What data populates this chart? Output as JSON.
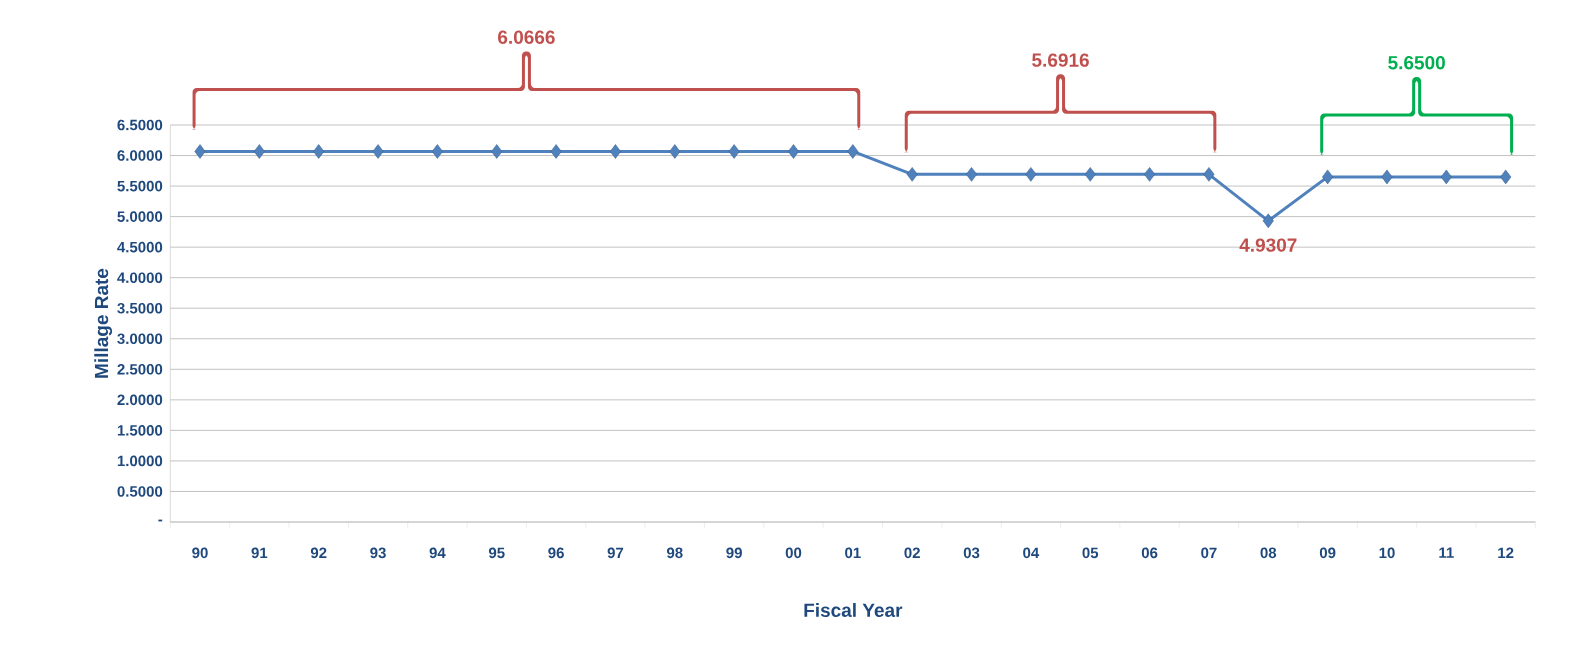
{
  "chart_data": {
    "type": "line",
    "xlabel": "Fiscal Year",
    "ylabel": "Millage Rate",
    "categories": [
      "90",
      "91",
      "92",
      "93",
      "94",
      "95",
      "96",
      "97",
      "98",
      "99",
      "00",
      "01",
      "02",
      "03",
      "04",
      "05",
      "06",
      "07",
      "08",
      "09",
      "10",
      "11",
      "12"
    ],
    "series": [
      {
        "color": "#4f81bd",
        "values": [
          6.0666,
          6.0666,
          6.0666,
          6.0666,
          6.0666,
          6.0666,
          6.0666,
          6.0666,
          6.0666,
          6.0666,
          6.0666,
          6.0666,
          5.6916,
          5.6916,
          5.6916,
          5.6916,
          5.6916,
          5.6916,
          4.9307,
          5.65,
          5.65,
          5.65,
          5.65
        ]
      }
    ],
    "ylim": [
      0,
      6.5
    ],
    "yticks": [
      {
        "value": 0,
        "label": "-"
      },
      {
        "value": 0.5,
        "label": "0.5000"
      },
      {
        "value": 1,
        "label": "1.0000"
      },
      {
        "value": 1.5,
        "label": "1.5000"
      },
      {
        "value": 2,
        "label": "2.0000"
      },
      {
        "value": 2.5,
        "label": "2.5000"
      },
      {
        "value": 3,
        "label": "3.0000"
      },
      {
        "value": 3.5,
        "label": "3.5000"
      },
      {
        "value": 4,
        "label": "4.0000"
      },
      {
        "value": 4.5,
        "label": "4.5000"
      },
      {
        "value": 5,
        "label": "5.0000"
      },
      {
        "value": 5.5,
        "label": "5.5000"
      },
      {
        "value": 6,
        "label": "6.0000"
      },
      {
        "value": 6.5,
        "label": "6.5000"
      }
    ],
    "grid": "y",
    "marker": "diamond",
    "line_style": "solid",
    "annotations": [
      "6.0666",
      "5.6916",
      "5.6500",
      {
        "text": "4.9307",
        "x": "08",
        "y": 4.9307
      }
    ]
  }
}
